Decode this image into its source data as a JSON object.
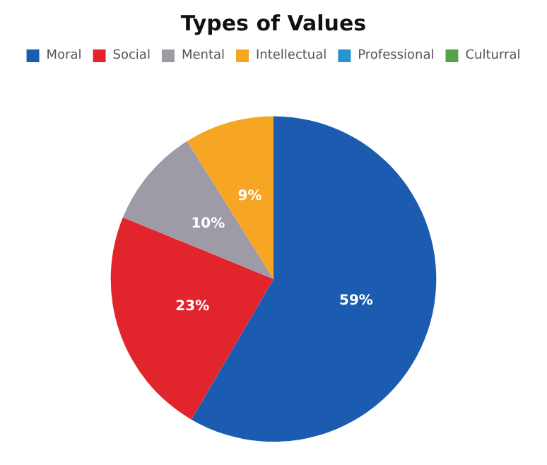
{
  "chart_data": {
    "type": "pie",
    "title": "Types of Values",
    "categories": [
      "Moral",
      "Social",
      "Mental",
      "Intellectual",
      "Professional",
      "Culturral"
    ],
    "values": [
      59,
      23,
      10,
      9,
      0,
      0
    ],
    "colors": [
      "#1c5cb0",
      "#e2242c",
      "#9f9ba6",
      "#f6a622",
      "#2b92d2",
      "#52a447"
    ],
    "value_labels": [
      "59%",
      "23%",
      "10%",
      "9%",
      null,
      null
    ],
    "legend": "top"
  }
}
